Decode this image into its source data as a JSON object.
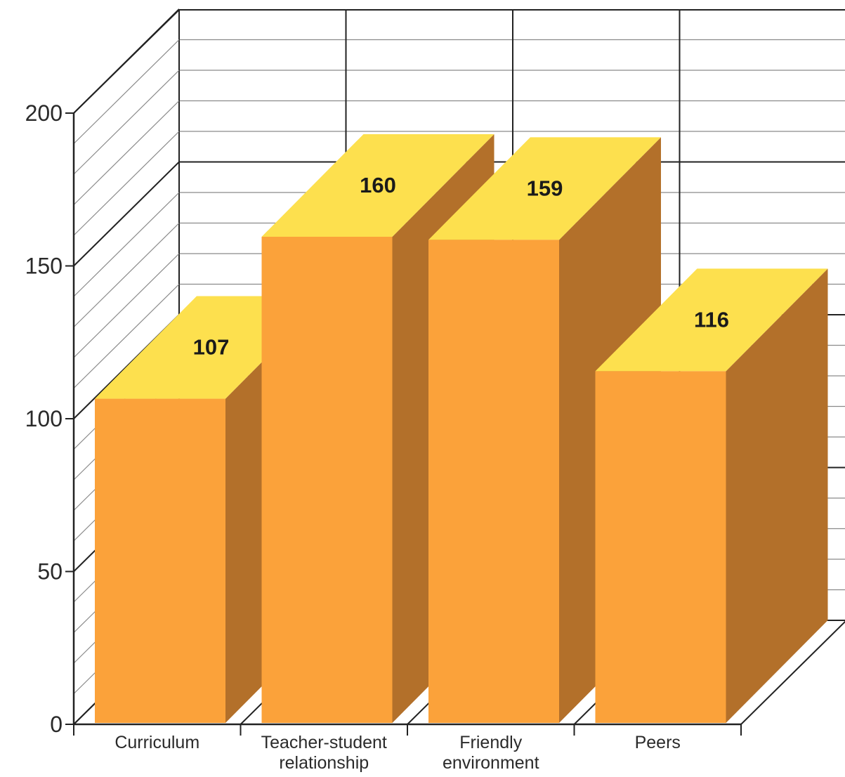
{
  "chart_data": {
    "type": "bar",
    "title": "",
    "xlabel": "",
    "ylabel": "",
    "ylim": [
      0,
      200
    ],
    "yticks": [
      0,
      50,
      100,
      150,
      200
    ],
    "categories": [
      [
        "Curriculum"
      ],
      [
        "Teacher-student",
        "relationship"
      ],
      [
        "Friendly",
        "environment"
      ],
      [
        "Peers"
      ]
    ],
    "values": [
      107,
      160,
      159,
      116
    ],
    "data_labels": [
      "107",
      "160",
      "159",
      "116"
    ],
    "grid": true,
    "legend": "none",
    "style": "3d",
    "colors": {
      "bar_front": "#fba23a",
      "bar_top": "#fde04e",
      "bar_side": "#b3702a"
    }
  }
}
